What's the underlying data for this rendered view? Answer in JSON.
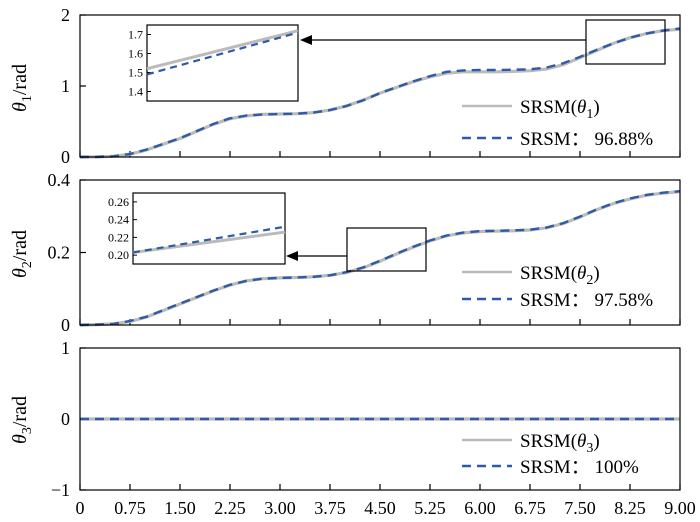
{
  "chart_data": [
    {
      "type": "line",
      "ylabel_symbol": "θ",
      "ylabel_sub": "1",
      "ylabel_unit": "/rad",
      "ylim": [
        0,
        2
      ],
      "ytick_labels": [
        "0",
        "1",
        "2"
      ],
      "ytick_values": [
        0,
        1,
        2
      ],
      "x": [
        0,
        0.25,
        0.5,
        0.75,
        1.0,
        1.25,
        1.5,
        1.75,
        2.0,
        2.25,
        2.5,
        2.75,
        3.0,
        3.25,
        3.5,
        3.75,
        4.0,
        4.25,
        4.5,
        4.75,
        5.0,
        5.25,
        5.5,
        5.75,
        6.0,
        6.25,
        6.5,
        6.75,
        7.0,
        7.25,
        7.5,
        7.75,
        8.0,
        8.25,
        8.5,
        8.75,
        9.0
      ],
      "series": [
        {
          "name": "SRSM(θ1)",
          "color": "#bbbbbb",
          "dash": "solid",
          "values": [
            0,
            0.002,
            0.01,
            0.04,
            0.1,
            0.18,
            0.26,
            0.36,
            0.46,
            0.54,
            0.58,
            0.6,
            0.605,
            0.61,
            0.625,
            0.66,
            0.72,
            0.8,
            0.9,
            0.98,
            1.06,
            1.13,
            1.18,
            1.2,
            1.2,
            1.2,
            1.205,
            1.215,
            1.24,
            1.3,
            1.4,
            1.5,
            1.6,
            1.68,
            1.74,
            1.78,
            1.8
          ]
        },
        {
          "name": "SRSM: 96.88%",
          "color": "#2e5aa8",
          "dash": "dashed",
          "values": [
            0,
            0.002,
            0.01,
            0.042,
            0.105,
            0.185,
            0.265,
            0.365,
            0.465,
            0.545,
            0.585,
            0.6,
            0.605,
            0.61,
            0.625,
            0.66,
            0.72,
            0.8,
            0.9,
            0.985,
            1.065,
            1.14,
            1.2,
            1.22,
            1.225,
            1.225,
            1.23,
            1.235,
            1.26,
            1.32,
            1.41,
            1.51,
            1.6,
            1.68,
            1.74,
            1.78,
            1.81
          ]
        }
      ],
      "legend_position": "bottom-right",
      "inset": {
        "yticks": [
          "1.7",
          "1.6",
          "1.5",
          "1.4"
        ],
        "ytick_values": [
          1.7,
          1.6,
          1.5,
          1.4
        ],
        "ylim": [
          1.35,
          1.75
        ],
        "series_start": [
          1.52,
          1.49
        ],
        "series_end": [
          1.72,
          1.71
        ]
      }
    },
    {
      "type": "line",
      "ylabel_symbol": "θ",
      "ylabel_sub": "2",
      "ylabel_unit": "/rad",
      "ylim": [
        0,
        0.4
      ],
      "ytick_labels": [
        "0",
        "0.2",
        "0.4"
      ],
      "ytick_values": [
        0,
        0.2,
        0.4
      ],
      "x": [
        0,
        0.25,
        0.5,
        0.75,
        1.0,
        1.25,
        1.5,
        1.75,
        2.0,
        2.25,
        2.5,
        2.75,
        3.0,
        3.25,
        3.5,
        3.75,
        4.0,
        4.25,
        4.5,
        4.75,
        5.0,
        5.25,
        5.5,
        5.75,
        6.0,
        6.25,
        6.5,
        6.75,
        7.0,
        7.25,
        7.5,
        7.75,
        8.0,
        8.25,
        8.5,
        8.75,
        9.0
      ],
      "series": [
        {
          "name": "SRSM(θ2)",
          "color": "#bbbbbb",
          "dash": "solid",
          "values": [
            0,
            0.001,
            0.003,
            0.01,
            0.022,
            0.04,
            0.058,
            0.076,
            0.094,
            0.11,
            0.122,
            0.128,
            0.13,
            0.131,
            0.133,
            0.137,
            0.145,
            0.158,
            0.176,
            0.196,
            0.215,
            0.232,
            0.246,
            0.254,
            0.258,
            0.259,
            0.26,
            0.262,
            0.268,
            0.28,
            0.298,
            0.318,
            0.335,
            0.348,
            0.358,
            0.364,
            0.368
          ]
        },
        {
          "name": "SRSM: 97.58%",
          "color": "#2e5aa8",
          "dash": "dashed",
          "values": [
            0,
            0.001,
            0.003,
            0.011,
            0.023,
            0.041,
            0.059,
            0.077,
            0.095,
            0.111,
            0.122,
            0.128,
            0.13,
            0.131,
            0.133,
            0.137,
            0.146,
            0.159,
            0.177,
            0.197,
            0.216,
            0.233,
            0.247,
            0.255,
            0.259,
            0.26,
            0.261,
            0.263,
            0.269,
            0.281,
            0.299,
            0.319,
            0.336,
            0.349,
            0.359,
            0.365,
            0.369
          ]
        }
      ],
      "legend_position": "bottom-right",
      "inset": {
        "yticks": [
          "0.26",
          "0.24",
          "0.22",
          "0.20"
        ],
        "ytick_values": [
          0.26,
          0.24,
          0.22,
          0.2
        ],
        "ylim": [
          0.19,
          0.27
        ],
        "series_start": [
          0.203,
          0.203
        ],
        "series_end": [
          0.226,
          0.232
        ]
      }
    },
    {
      "type": "line",
      "ylabel_symbol": "θ",
      "ylabel_sub": "3",
      "ylabel_unit": "/rad",
      "ylim": [
        -1,
        1
      ],
      "ytick_labels": [
        "−1",
        "0",
        "1"
      ],
      "ytick_values": [
        -1,
        0,
        1
      ],
      "x": [
        0,
        9.0
      ],
      "series": [
        {
          "name": "SRSM(θ3)",
          "color": "#bbbbbb",
          "dash": "solid",
          "values": [
            0,
            0
          ]
        },
        {
          "name": "SRSM: 100%",
          "color": "#2e5aa8",
          "dash": "dashed",
          "values": [
            0,
            0
          ]
        }
      ],
      "legend_position": "bottom-right",
      "xtick_labels": [
        "0",
        "0.75",
        "1.50",
        "2.25",
        "3.00",
        "3.75",
        "4.50",
        "5.25",
        "6.00",
        "6.75",
        "7.50",
        "8.25",
        "9.00"
      ],
      "xtick_values": [
        0,
        0.75,
        1.5,
        2.25,
        3.0,
        3.75,
        4.5,
        5.25,
        6.0,
        6.75,
        7.5,
        8.25,
        9.0
      ]
    }
  ],
  "legend": [
    {
      "solid_prefix": "SRSM(",
      "solid_symbol": "θ",
      "solid_sub": "1",
      "solid_suffix": ")",
      "dashed_text": "SRSM：  96.88%"
    },
    {
      "solid_prefix": "SRSM(",
      "solid_symbol": "θ",
      "solid_sub": "2",
      "solid_suffix": ")",
      "dashed_text": "SRSM：  97.58%"
    },
    {
      "solid_prefix": "SRSM(",
      "solid_symbol": "θ",
      "solid_sub": "3",
      "solid_suffix": ")",
      "dashed_text": "SRSM：  100%"
    }
  ],
  "colors": {
    "solid": "#bbbbbb",
    "dashed": "#2e5aa8"
  }
}
